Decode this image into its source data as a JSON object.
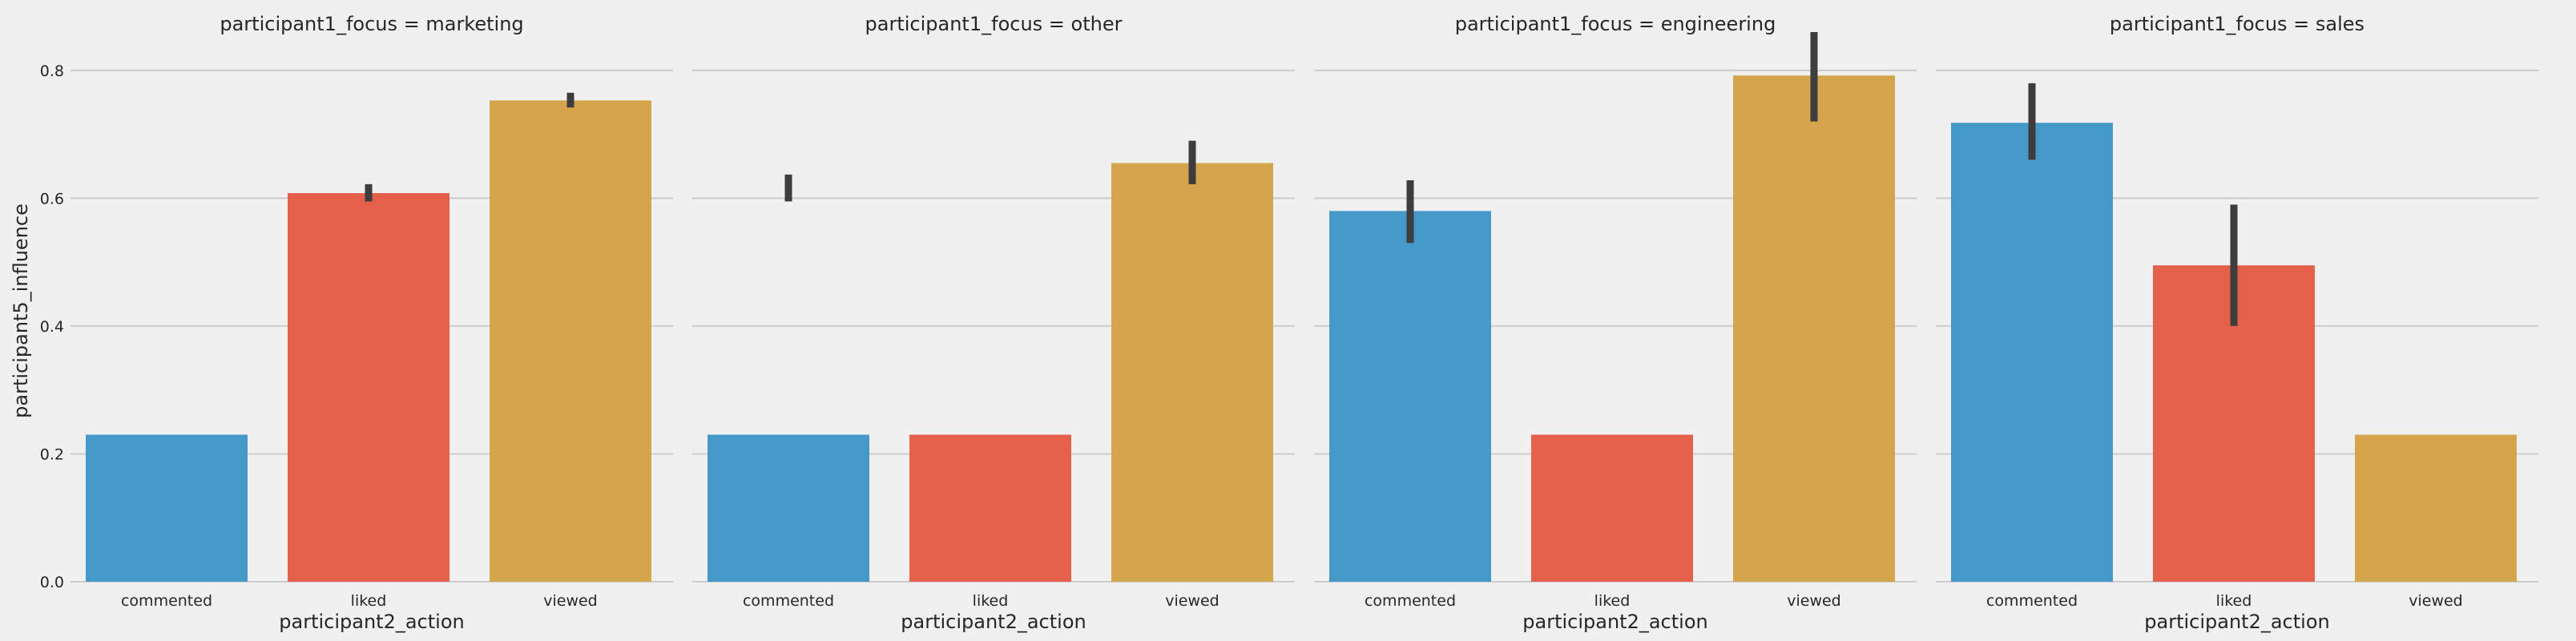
{
  "chart_data": {
    "type": "bar",
    "layout": "facet-columns",
    "facet_variable": "participant1_focus",
    "xlabel": "participant2_action",
    "ylabel": "participant5_influence",
    "ylim": [
      0,
      0.86
    ],
    "yticks": [
      0.0,
      0.2,
      0.4,
      0.6,
      0.8
    ],
    "ytick_labels": [
      "0.0",
      "0.2",
      "0.4",
      "0.6",
      "0.8"
    ],
    "grid": true,
    "categories": [
      "commented",
      "liked",
      "viewed"
    ],
    "category_colors": [
      "#4499c9",
      "#e5604a",
      "#d4a54b"
    ],
    "facets": [
      {
        "title": "participant1_focus = marketing",
        "values": [
          0.23,
          0.608,
          0.753
        ],
        "error_low": [
          null,
          0.595,
          0.742
        ],
        "error_high": [
          null,
          0.622,
          0.765
        ]
      },
      {
        "title": "participant1_focus = other",
        "values": [
          0.23,
          0.23,
          0.655
        ],
        "error_low": [
          0.595,
          null,
          0.622
        ],
        "error_high": [
          0.637,
          null,
          0.69
        ]
      },
      {
        "title": "participant1_focus = engineering",
        "values": [
          0.58,
          0.23,
          0.792
        ],
        "error_low": [
          0.53,
          null,
          0.72
        ],
        "error_high": [
          0.628,
          null,
          0.86
        ]
      },
      {
        "title": "participant1_focus = sales",
        "values": [
          0.718,
          0.495,
          0.23
        ],
        "error_low": [
          0.66,
          0.4,
          null
        ],
        "error_high": [
          0.78,
          0.59,
          null
        ]
      }
    ]
  }
}
